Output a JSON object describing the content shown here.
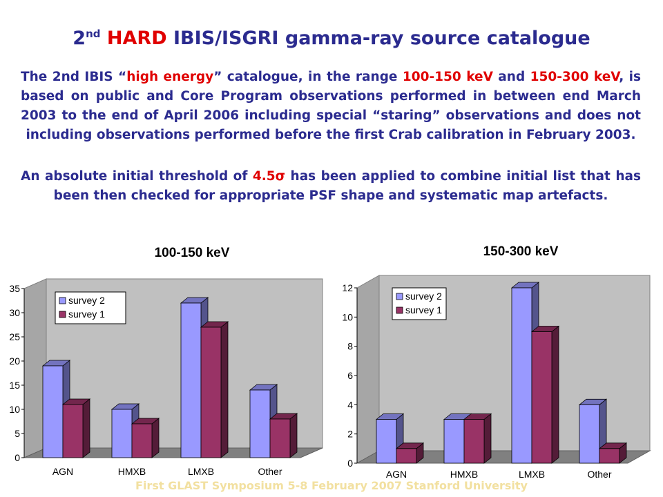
{
  "title": {
    "num": "2",
    "sup": "nd",
    "hard": "HARD",
    "rest": " IBIS/ISGRI gamma-ray source catalogue"
  },
  "paragraph1": {
    "p1": "The 2nd IBIS “",
    "h1": "high energy",
    "p2": "” catalogue, in the range ",
    "h2": "100-150 keV",
    "p3": " and ",
    "h3": "150-300 keV",
    "p4": ",  is based on public and Core Program observations performed in between end March 2003 to the end of April 2006 including special “staring” observations and does not including observations performed before the first Crab calibration in February 2003."
  },
  "paragraph2": {
    "p1": "An absolute initial threshold of ",
    "h1": "4.5σ",
    "p2": " has been applied to combine initial list that has been then checked for appropriate PSF shape and systematic map artefacts."
  },
  "footer": "First GLAST Symposium    5-8 February 2007  Stanford University",
  "colors": {
    "survey2": "#9999ff",
    "survey1": "#993366",
    "text": "#2b2b8f",
    "highlight": "#e00000"
  },
  "chart_data": [
    {
      "type": "bar",
      "title": "100-150 keV",
      "categories": [
        "AGN",
        "HMXB",
        "LMXB",
        "Other"
      ],
      "series": [
        {
          "name": "survey 2",
          "values": [
            19,
            10,
            32,
            14
          ]
        },
        {
          "name": "survey 1",
          "values": [
            11,
            7,
            27,
            8
          ]
        }
      ],
      "ylim": [
        0,
        35
      ],
      "yticks": [
        "0",
        "5",
        "10",
        "15",
        "20",
        "25",
        "30",
        "35"
      ],
      "legend": "top-left",
      "grid": false
    },
    {
      "type": "bar",
      "title": "150-300 keV",
      "categories": [
        "AGN",
        "HMXB",
        "LMXB",
        "Other"
      ],
      "series": [
        {
          "name": "survey 2",
          "values": [
            3,
            3,
            12,
            4
          ]
        },
        {
          "name": "survey 1",
          "values": [
            1,
            3,
            9,
            1
          ]
        }
      ],
      "ylim": [
        0,
        12
      ],
      "yticks": [
        "0",
        "2",
        "4",
        "6",
        "8",
        "10",
        "12"
      ],
      "legend": "top-left",
      "grid": false
    }
  ]
}
